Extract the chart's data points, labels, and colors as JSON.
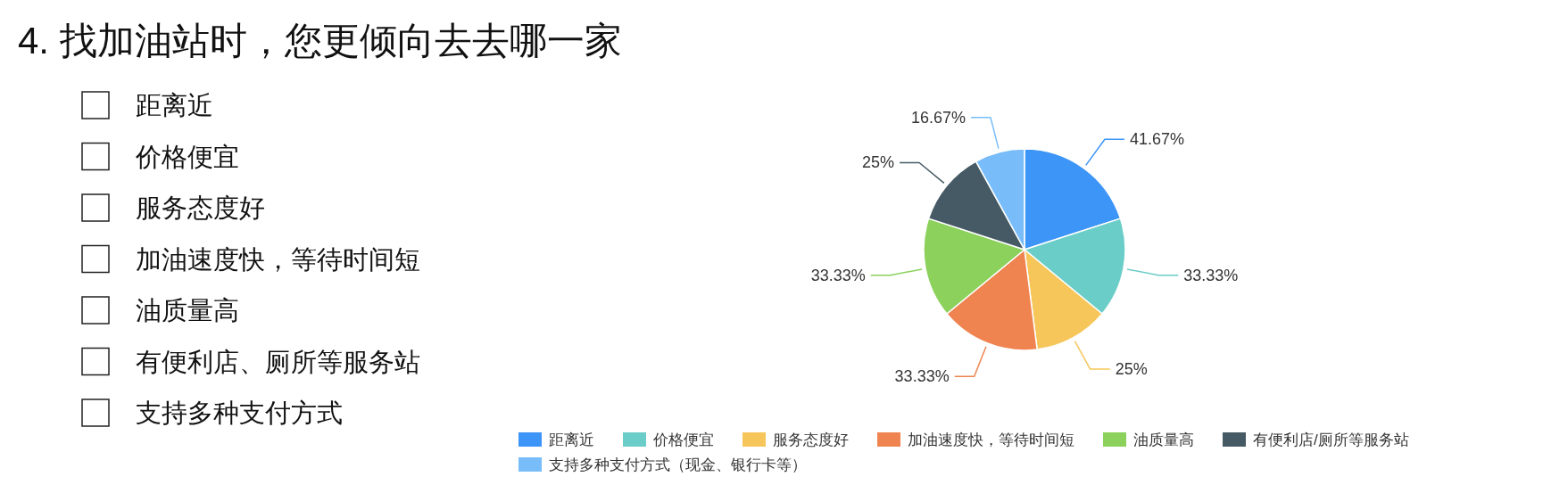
{
  "chart_data": {
    "type": "pie",
    "title": "4. 找加油站时，您更倾向去去哪一家",
    "annotations": [
      "距离近",
      "价格便宜",
      "服务态度好",
      "加油速度快，等待时间短",
      "油质量高",
      "有便利店、厕所等服务站",
      "支持多种支付方式"
    ],
    "categories": [
      "距离近",
      "价格便宜",
      "服务态度好",
      "加油速度快，等待时间短",
      "油质量高",
      "有便利店/厕所等服务站",
      "支持多种支付方式（现金、银行卡等）"
    ],
    "values": [
      41.67,
      33.33,
      25,
      33.33,
      33.33,
      25,
      16.67
    ],
    "value_labels": [
      "41.67%",
      "33.33%",
      "25%",
      "33.33%",
      "33.33%",
      "25%",
      "16.67%"
    ],
    "colors": [
      "#3d95f7",
      "#6acdc8",
      "#f6c65b",
      "#ef8451",
      "#8bd15b",
      "#455a64",
      "#78bdfa"
    ],
    "legend": "bottom"
  }
}
